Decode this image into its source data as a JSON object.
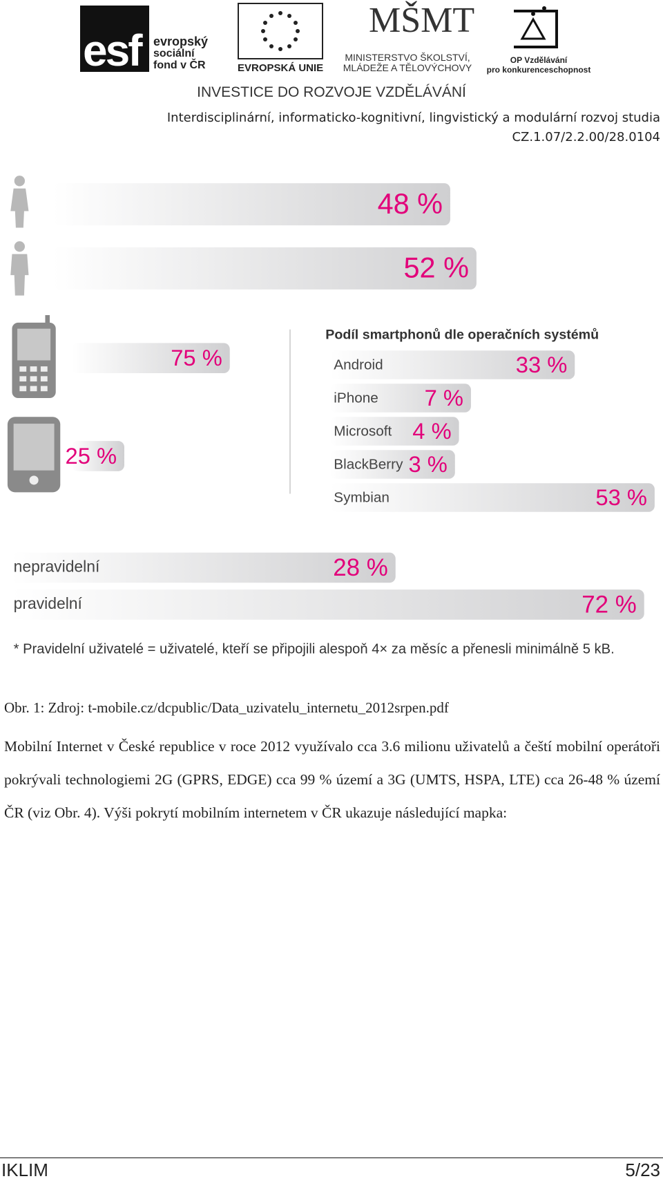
{
  "header": {
    "esf": {
      "mark": "esf",
      "lines": [
        "evropský",
        "sociální",
        "fond v ČR"
      ]
    },
    "eu": "EVROPSKÁ UNIE",
    "msmt": {
      "mark": "MŠMT",
      "lines": [
        "MINISTERSTVO ŠKOLSTVÍ,",
        "MLÁDEŽE A TĚLOVÝCHOVY"
      ]
    },
    "op": {
      "lines": [
        "OP Vzdělávání",
        "pro konkurenceschopnost"
      ]
    },
    "slogan": "INVESTICE DO ROZVOJE VZDĚLÁVÁNÍ",
    "project": "Interdisciplinární, informaticko-kognitivní, lingvistický a modulární rozvoj studia",
    "code": "CZ.1.07/2.2.00/28.0104"
  },
  "figure": {
    "gender": {
      "values": [
        48,
        52
      ],
      "value_labels": [
        "48 %",
        "52 %"
      ],
      "color": "#e2007a"
    },
    "devices": {
      "values": [
        75,
        25
      ],
      "value_labels": [
        "75 %",
        "25 %"
      ],
      "color": "#e2007a"
    },
    "os": {
      "title": "Podíl smartphonů dle operačních systémů",
      "categories": [
        "Android",
        "iPhone",
        "Microsoft",
        "BlackBerry",
        "Symbian"
      ],
      "values": [
        33,
        7,
        4,
        3,
        53
      ],
      "value_labels": [
        "33 %",
        "7 %",
        "4 %",
        "3 %",
        "53 %"
      ],
      "color": "#e2007a"
    },
    "usage": {
      "categories": [
        "nepravidelní",
        "pravidelní"
      ],
      "values": [
        28,
        72
      ],
      "value_labels": [
        "28 %",
        "72 %"
      ],
      "color": "#e2007a"
    },
    "footnote": "* Pravidelní uživatelé = uživatelé, kteří se připojili alespoň 4× za měsíc a přenesli minimálně 5 kB."
  },
  "caption": "Obr. 1: Zdroj: t-mobile.cz/dcpublic/Data_uzivatelu_internetu_2012srpen.pdf",
  "paragraph": "Mobilní Internet v České republice v roce 2012 využívalo cca 3.6 milionu uživatelů a čeští mobilní operátoři pokrývali technologiemi 2G (GPRS, EDGE) cca 99 % území a 3G (UMTS, HSPA, LTE) cca 26-48 % území ČR (viz Obr. 4). Výši pokrytí mobilním internetem v ČR ukazuje následující mapka:",
  "footer": {
    "left": "IKLIM",
    "right": "5/23"
  }
}
